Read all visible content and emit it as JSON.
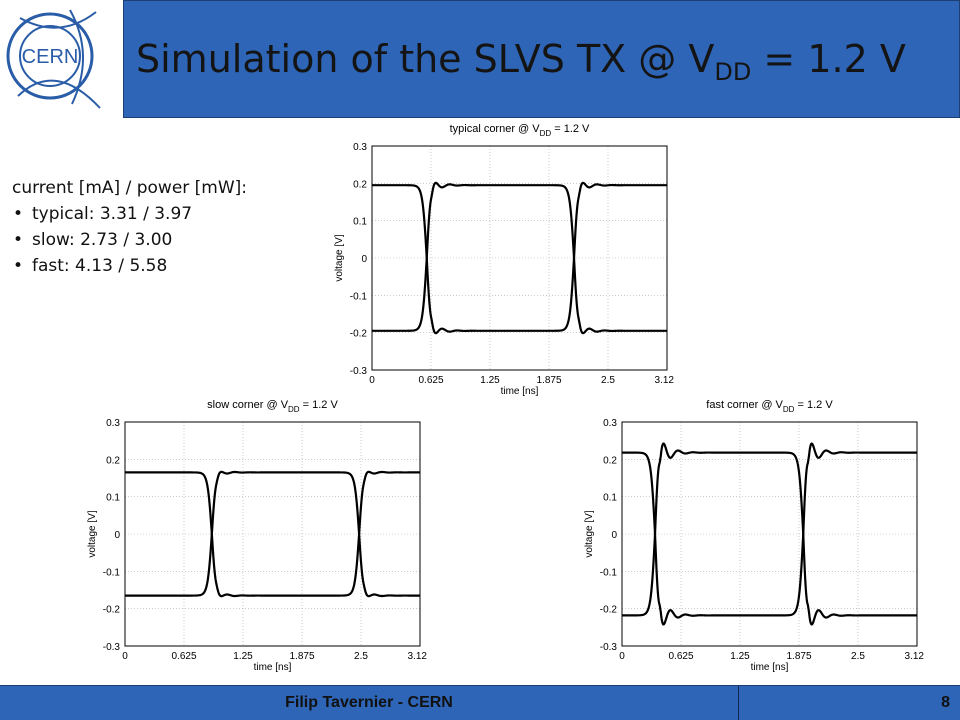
{
  "header": {
    "title_pre": "Simulation of the SLVS TX @ V",
    "title_sub": "DD",
    "title_post": " = 1.2 V",
    "logo_text": "CERN"
  },
  "info": {
    "heading": "current [mA] / power [mW]:",
    "bullet": "•",
    "items": [
      "typical: 3.31 / 3.97",
      "slow: 2.73 / 3.00",
      "fast: 4.13 / 5.58"
    ]
  },
  "footer": {
    "author": "Filip Tavernier - CERN",
    "page": "8"
  },
  "chart_data": [
    {
      "type": "line",
      "title": "typical corner @ V",
      "title_sub": "DD",
      "title_post": " = 1.2 V",
      "xlabel": "time [ns]",
      "ylabel": "voltage [V]",
      "xlim": [
        0,
        3.125
      ],
      "ylim": [
        -0.3,
        0.3
      ],
      "xticks": [
        "0",
        "0.625",
        "1.25",
        "1.875",
        "2.5",
        "3.125"
      ],
      "yticks": [
        "0.3",
        "0.2",
        "0.1",
        "0",
        "-0.1",
        "-0.2",
        "-0.3"
      ],
      "grid": true,
      "level": 0.195,
      "crossings": [
        0.58,
        2.14
      ],
      "ring_amplitude": 0.02
    },
    {
      "type": "line",
      "title": "slow corner @ V",
      "title_sub": "DD",
      "title_post": " = 1.2 V",
      "xlabel": "time [ns]",
      "ylabel": "voltage [V]",
      "xlim": [
        0,
        3.125
      ],
      "ylim": [
        -0.3,
        0.3
      ],
      "xticks": [
        "0",
        "0.625",
        "1.25",
        "1.875",
        "2.5",
        "3.125"
      ],
      "yticks": [
        "0.3",
        "0.2",
        "0.1",
        "0",
        "-0.1",
        "-0.2",
        "-0.3"
      ],
      "grid": true,
      "level": 0.165,
      "crossings": [
        0.92,
        2.48
      ],
      "ring_amplitude": 0.01
    },
    {
      "type": "line",
      "title": "fast corner @ V",
      "title_sub": "DD",
      "title_post": " = 1.2 V",
      "xlabel": "time [ns]",
      "ylabel": "voltage [V]",
      "xlim": [
        0,
        3.125
      ],
      "ylim": [
        -0.3,
        0.3
      ],
      "xticks": [
        "0",
        "0.625",
        "1.25",
        "1.875",
        "2.5",
        "3.125"
      ],
      "yticks": [
        "0.3",
        "0.2",
        "0.1",
        "0",
        "-0.1",
        "-0.2",
        "-0.3"
      ],
      "grid": true,
      "level": 0.218,
      "crossings": [
        0.35,
        1.92
      ],
      "ring_amplitude": 0.05
    }
  ]
}
